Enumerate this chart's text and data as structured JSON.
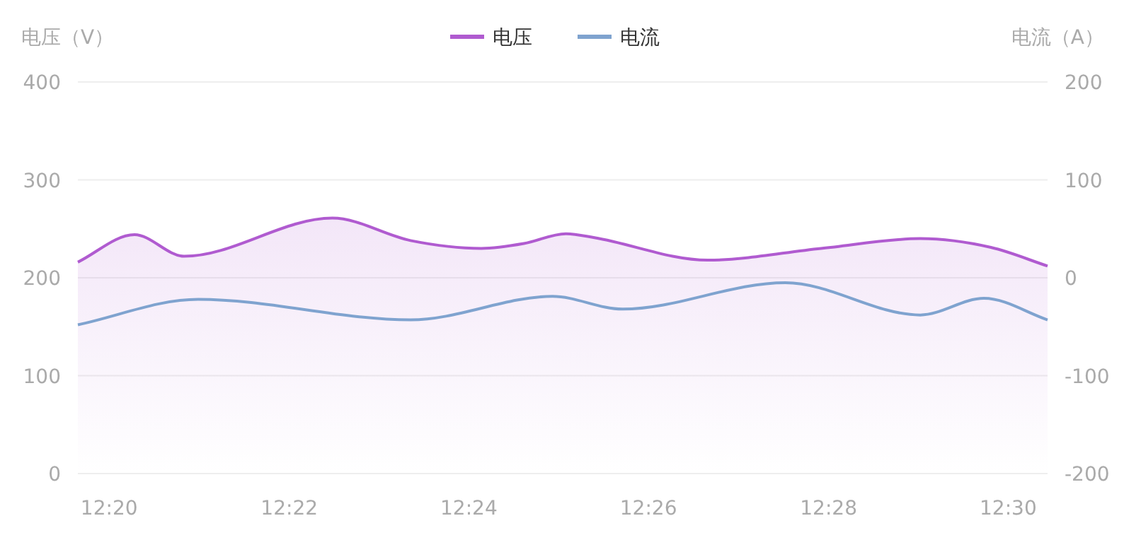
{
  "chart_data": {
    "type": "area",
    "ylabel": "电压（V）",
    "y2label": "电流（A）",
    "legend": "top",
    "grid": "y",
    "marker": "none",
    "line_style": "solid",
    "xlim": [
      12.3275,
      12.5073
    ],
    "xticks": [
      {
        "value": 12.3333,
        "label": "12:20"
      },
      {
        "value": 12.3667,
        "label": "12:22"
      },
      {
        "value": 12.4,
        "label": "12:24"
      },
      {
        "value": 12.4333,
        "label": "12:26"
      },
      {
        "value": 12.4667,
        "label": "12:28"
      },
      {
        "value": 12.5,
        "label": "12:30"
      }
    ],
    "ylim": [
      0,
      400
    ],
    "yticks": [
      0,
      100,
      200,
      300,
      400
    ],
    "y2lim": [
      -200,
      200
    ],
    "y2ticks": [
      -200,
      -100,
      0,
      100,
      200
    ],
    "series": [
      {
        "name": "电压",
        "color": "#b05bd0",
        "x": [
          12.3275,
          12.338,
          12.3472,
          12.3747,
          12.3892,
          12.4023,
          12.4102,
          12.418,
          12.4233,
          12.4443,
          12.4653,
          12.4837,
          12.4968,
          12.5073
        ],
        "values": [
          216,
          244,
          222,
          261,
          238,
          230,
          235,
          245,
          241,
          218,
          230,
          240,
          231,
          212
        ]
      },
      {
        "name": "电流",
        "color": "#7fa3cf",
        "type": "line",
        "axis": "y2",
        "x": [
          12.3275,
          12.3498,
          12.3892,
          12.4155,
          12.4285,
          12.4587,
          12.4837,
          12.4955,
          12.5073
        ],
        "values": [
          -48,
          -22,
          -43,
          -19,
          -32,
          -5,
          -38,
          -21,
          -43
        ]
      }
    ]
  }
}
